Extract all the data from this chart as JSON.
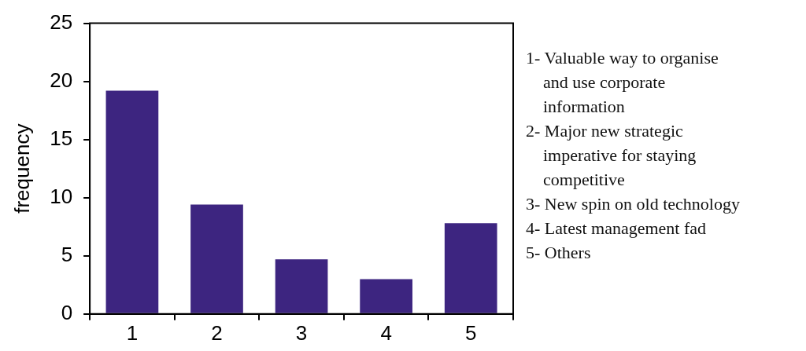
{
  "chart_data": {
    "type": "bar",
    "ylabel": "frequency",
    "categories": [
      "1",
      "2",
      "3",
      "4",
      "5"
    ],
    "values": [
      19.2,
      9.4,
      4.7,
      3,
      7.8
    ],
    "color": "#3d2580",
    "ylim": [
      0,
      25
    ],
    "yticks": [
      0,
      5,
      10,
      15,
      20,
      25
    ],
    "grid": false,
    "legend": false,
    "annotations": [
      "1- Valuable way to organise and use corporate information",
      "2- Major new strategic imperative for staying competitive",
      "3- New spin on old technology",
      "4- Latest management fad",
      "5- Others"
    ]
  }
}
